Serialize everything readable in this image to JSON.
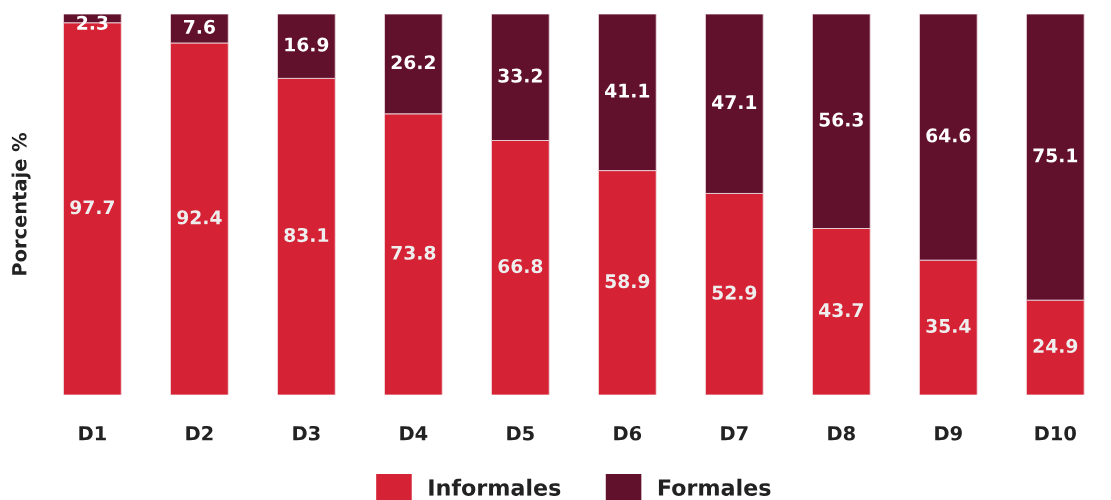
{
  "chart_data": {
    "type": "bar",
    "stacked": true,
    "ylabel": "Porcentaje %",
    "categories": [
      "D1",
      "D2",
      "D3",
      "D4",
      "D5",
      "D6",
      "D7",
      "D8",
      "D9",
      "D10"
    ],
    "series": [
      {
        "name": "Informales",
        "color": "#d52335",
        "values": [
          97.7,
          92.4,
          83.1,
          73.8,
          66.8,
          58.9,
          52.9,
          43.7,
          35.4,
          24.9
        ]
      },
      {
        "name": "Formales",
        "color": "#61112c",
        "values": [
          2.3,
          7.6,
          16.9,
          26.2,
          33.2,
          41.1,
          47.1,
          56.3,
          64.6,
          75.1
        ]
      }
    ],
    "data_labels": true,
    "legend": "bottom",
    "grid": false,
    "tick_labels": "x"
  }
}
